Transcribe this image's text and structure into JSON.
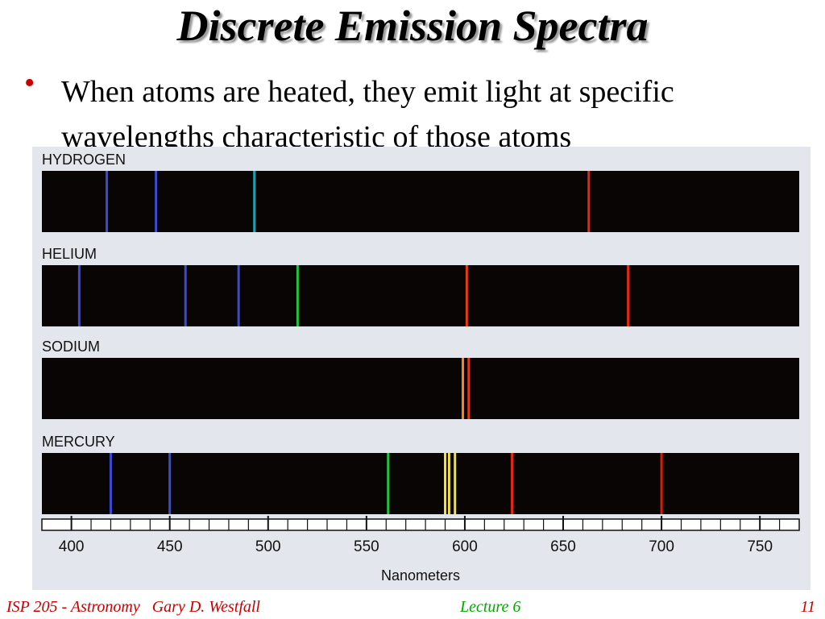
{
  "slide": {
    "title": "Discrete Emission Spectra",
    "bullet": "When atoms are heated, they emit light at specific wavelengths characteristic of those atoms"
  },
  "footer": {
    "left": "ISP 205 - Astronomy   Gary D. Westfall",
    "center": "Lecture 6",
    "page": "11"
  },
  "chart_data": {
    "type": "emission-spectra",
    "xlabel": "Nanometers",
    "xlim": [
      385,
      770
    ],
    "xticks": [
      400,
      450,
      500,
      550,
      600,
      650,
      700,
      750
    ],
    "background_color": "#0a0505",
    "series": [
      {
        "name": "HYDROGEN",
        "lines": [
          {
            "nm": 418,
            "color": "#3b4bd0"
          },
          {
            "nm": 443,
            "color": "#3b4bd0"
          },
          {
            "nm": 493,
            "color": "#1fa0b0"
          },
          {
            "nm": 663,
            "color": "#e02818"
          }
        ]
      },
      {
        "name": "HELIUM",
        "lines": [
          {
            "nm": 404,
            "color": "#3b4bd0"
          },
          {
            "nm": 458,
            "color": "#3b4bd0"
          },
          {
            "nm": 485,
            "color": "#3b4bd0"
          },
          {
            "nm": 515,
            "color": "#20c040"
          },
          {
            "nm": 601,
            "color": "#e83818"
          },
          {
            "nm": 683,
            "color": "#e02818"
          }
        ]
      },
      {
        "name": "SODIUM",
        "lines": [
          {
            "nm": 599,
            "color": "#f08c14"
          },
          {
            "nm": 602,
            "color": "#e83818"
          }
        ]
      },
      {
        "name": "MERCURY",
        "lines": [
          {
            "nm": 420,
            "color": "#3b4bd0"
          },
          {
            "nm": 450,
            "color": "#3b4bd0"
          },
          {
            "nm": 561,
            "color": "#20c040"
          },
          {
            "nm": 590,
            "color": "#f0e040"
          },
          {
            "nm": 592,
            "color": "#f0e040"
          },
          {
            "nm": 595,
            "color": "#f0e040"
          },
          {
            "nm": 624,
            "color": "#e02818"
          },
          {
            "nm": 700,
            "color": "#d02010"
          }
        ]
      }
    ]
  }
}
